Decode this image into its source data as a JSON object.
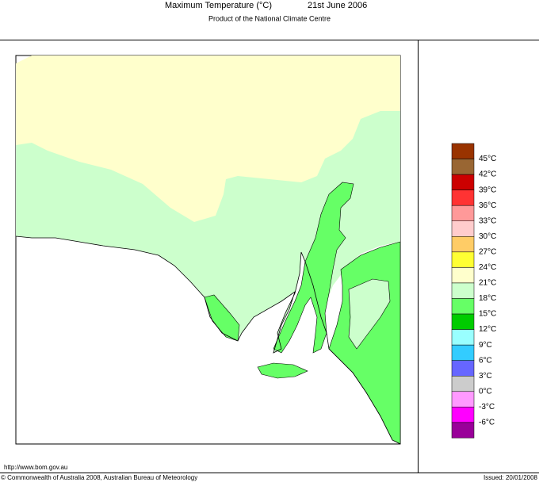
{
  "header": {
    "title": "Maximum Temperature (°C)",
    "date": "21st June 2006",
    "subtitle": "Product of the National Climate Centre"
  },
  "legend": {
    "labels": [
      "45°C",
      "42°C",
      "39°C",
      "36°C",
      "33°C",
      "30°C",
      "27°C",
      "24°C",
      "21°C",
      "18°C",
      "15°C",
      "12°C",
      "9°C",
      "6°C",
      "3°C",
      "0°C",
      "-3°C",
      "-6°C"
    ],
    "colors": [
      "#993300",
      "#996633",
      "#cc0000",
      "#ff3333",
      "#ff9999",
      "#ffcccc",
      "#ffcc66",
      "#ffff33",
      "#ffffcc",
      "#ccffcc",
      "#66ff66",
      "#00cc00",
      "#99ffff",
      "#33ccff",
      "#6666ff",
      "#cccccc",
      "#ff99ff",
      "#ff00ff",
      "#990099"
    ]
  },
  "footer": {
    "url": "http://www.bom.gov.au",
    "copyright": "© Commonwealth of Australia 2008, Australian Bureau of Meteorology",
    "issued": "Issued: 20/01/2008"
  }
}
